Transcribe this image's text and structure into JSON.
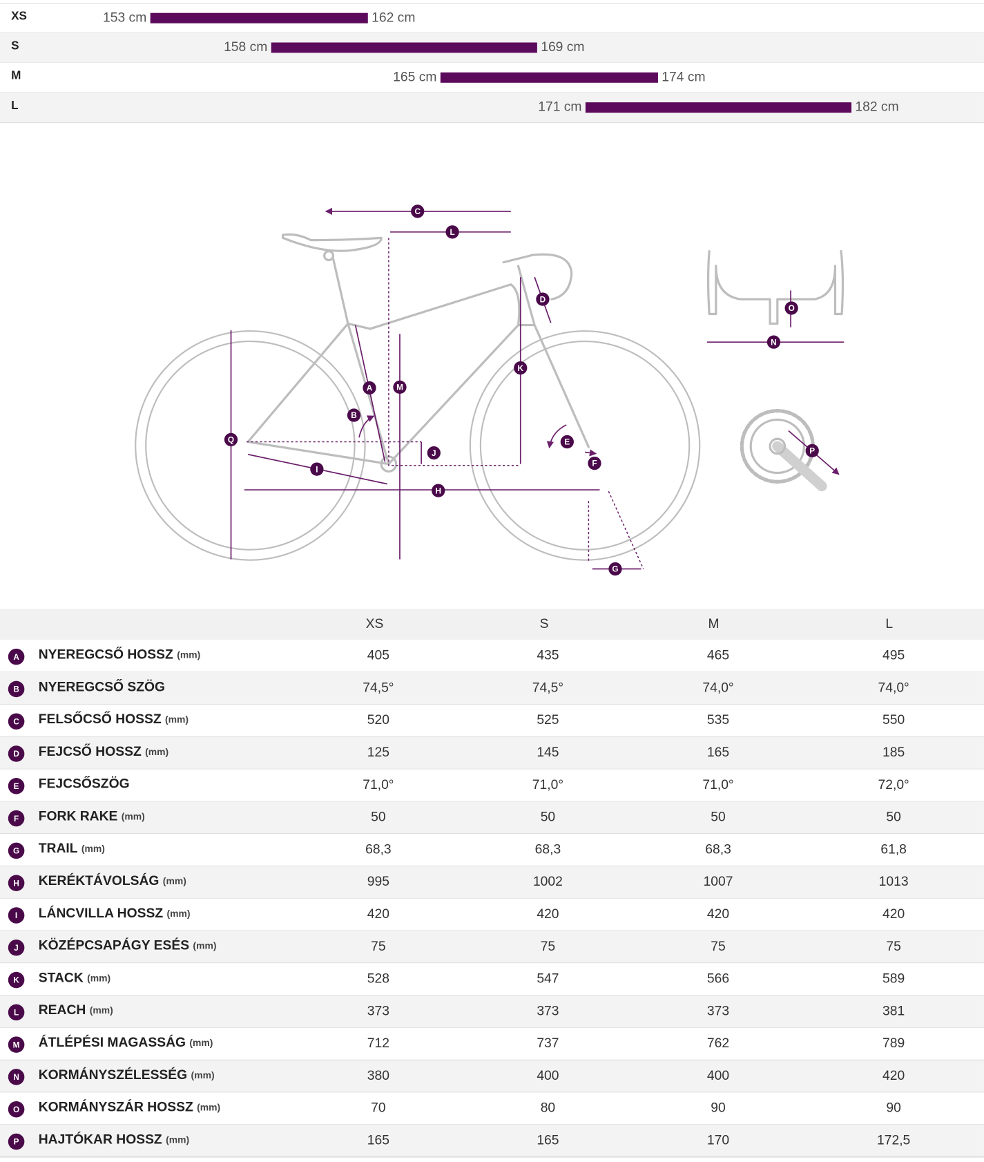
{
  "sizes": [
    {
      "name": "XS",
      "min": 153,
      "max": 162,
      "min_label": "153 cm",
      "max_label": "162 cm"
    },
    {
      "name": "S",
      "min": 158,
      "max": 169,
      "min_label": "158 cm",
      "max_label": "169 cm"
    },
    {
      "name": "M",
      "min": 165,
      "max": 174,
      "min_label": "165 cm",
      "max_label": "174 cm"
    },
    {
      "name": "L",
      "min": 171,
      "max": 182,
      "min_label": "171 cm",
      "max_label": "182 cm"
    }
  ],
  "diagram": {
    "extra_label": "Q"
  },
  "table": {
    "columns": [
      "XS",
      "S",
      "M",
      "L"
    ],
    "rows": [
      {
        "letter": "A",
        "name": "NYEREGCSŐ HOSSZ",
        "unit": "(mm)",
        "values": [
          "405",
          "435",
          "465",
          "495"
        ]
      },
      {
        "letter": "B",
        "name": "NYEREGCSŐ SZÖG",
        "values": [
          "74,5°",
          "74,5°",
          "74,0°",
          "74,0°"
        ]
      },
      {
        "letter": "C",
        "name": "FELSŐCSŐ HOSSZ",
        "unit": "(mm)",
        "values": [
          "520",
          "525",
          "535",
          "550"
        ]
      },
      {
        "letter": "D",
        "name": "FEJCSŐ HOSSZ",
        "unit": "(mm)",
        "values": [
          "125",
          "145",
          "165",
          "185"
        ]
      },
      {
        "letter": "E",
        "name": "FEJCSŐSZÖG",
        "values": [
          "71,0°",
          "71,0°",
          "71,0°",
          "72,0°"
        ]
      },
      {
        "letter": "F",
        "name": "FORK RAKE",
        "unit": "(mm)",
        "values": [
          "50",
          "50",
          "50",
          "50"
        ]
      },
      {
        "letter": "G",
        "name": "TRAIL",
        "unit": "(mm)",
        "values": [
          "68,3",
          "68,3",
          "68,3",
          "61,8"
        ]
      },
      {
        "letter": "H",
        "name": "KERÉKTÁVOLSÁG",
        "unit": "(mm)",
        "values": [
          "995",
          "1002",
          "1007",
          "1013"
        ]
      },
      {
        "letter": "I",
        "name": "LÁNCVILLA HOSSZ",
        "unit": "(mm)",
        "values": [
          "420",
          "420",
          "420",
          "420"
        ]
      },
      {
        "letter": "J",
        "name": "KÖZÉPCSAPÁGY ESÉS",
        "unit": "(mm)",
        "values": [
          "75",
          "75",
          "75",
          "75"
        ]
      },
      {
        "letter": "K",
        "name": "STACK",
        "unit": "(mm)",
        "values": [
          "528",
          "547",
          "566",
          "589"
        ]
      },
      {
        "letter": "L",
        "name": "REACH",
        "unit": "(mm)",
        "values": [
          "373",
          "373",
          "373",
          "381"
        ]
      },
      {
        "letter": "M",
        "name": "ÁTLÉPÉSI MAGASSÁG",
        "unit": "(mm)",
        "values": [
          "712",
          "737",
          "762",
          "789"
        ]
      },
      {
        "letter": "N",
        "name": "KORMÁNYSZÉLESSÉG",
        "unit": "(mm)",
        "values": [
          "380",
          "400",
          "400",
          "420"
        ]
      },
      {
        "letter": "O",
        "name": "KORMÁNYSZÁR HOSSZ",
        "unit": "(mm)",
        "values": [
          "70",
          "80",
          "90",
          "90"
        ]
      },
      {
        "letter": "P",
        "name": "HAJTÓKAR HOSSZ",
        "unit": "(mm)",
        "values": [
          "165",
          "165",
          "170",
          "172,5"
        ]
      }
    ]
  }
}
